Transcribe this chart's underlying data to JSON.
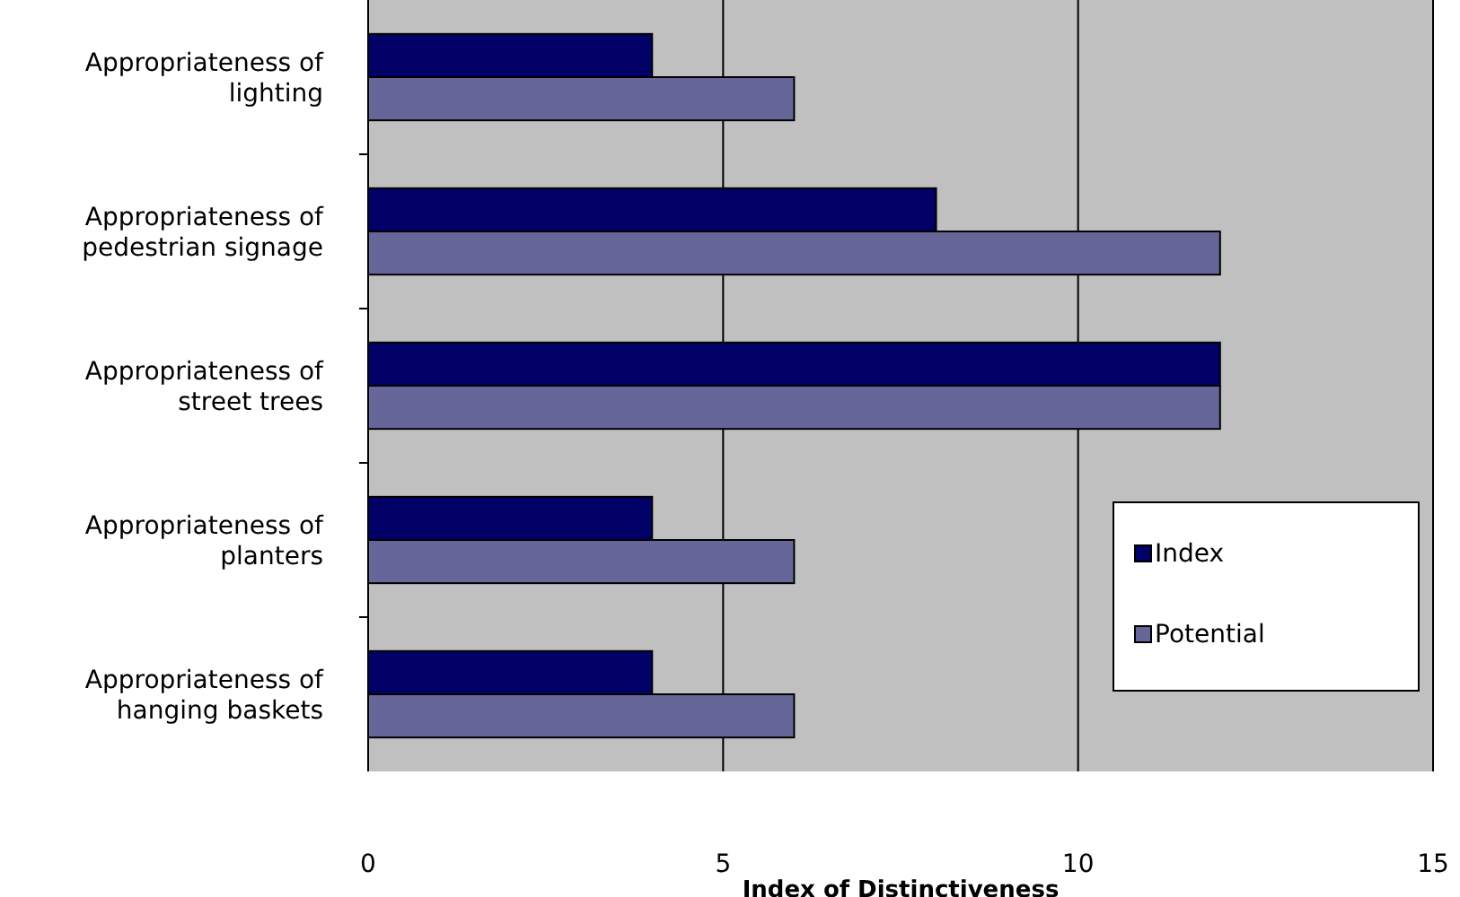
{
  "chart_data": {
    "type": "bar",
    "orientation": "horizontal",
    "xlabel": "Index of Distinctiveness",
    "categories": [
      "Appropriateness of lighting",
      "Appropriateness of pedestrian signage",
      "Appropriateness of street trees",
      "Appropriateness of planters",
      "Appropriateness of hanging baskets"
    ],
    "series": [
      {
        "name": "Index",
        "color": "#000066",
        "values": [
          4,
          8,
          12,
          4,
          4
        ]
      },
      {
        "name": "Potential",
        "color": "#666699",
        "values": [
          6,
          12,
          12,
          6,
          6
        ]
      }
    ],
    "xlim": [
      0,
      15
    ],
    "xticks": [
      0,
      5,
      10,
      15
    ],
    "grid": "x",
    "legend": "bottom right"
  }
}
